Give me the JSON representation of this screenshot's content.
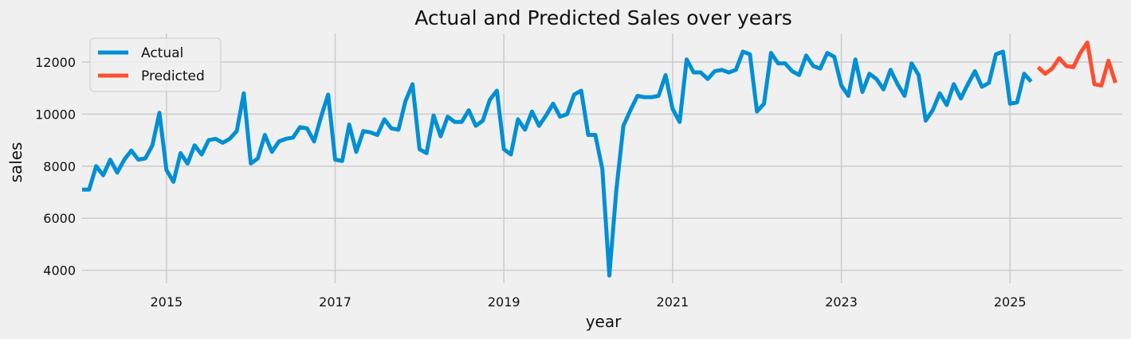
{
  "chart_data": {
    "type": "line",
    "title": "Actual and Predicted Sales over years",
    "xlabel": "year",
    "ylabel": "sales",
    "xlim": [
      2014.0,
      2026.33
    ],
    "ylim": [
      3500,
      13100
    ],
    "x_ticks": [
      2015,
      2017,
      2019,
      2021,
      2023,
      2025
    ],
    "y_ticks": [
      4000,
      6000,
      8000,
      10000,
      12000
    ],
    "grid": true,
    "legend_position": "top-left",
    "x_start_year": 2014,
    "points_per_year": 12,
    "series": [
      {
        "name": "Actual",
        "color": "#008fd5",
        "start_index": 0,
        "values": [
          7100,
          7100,
          8000,
          7650,
          8250,
          7750,
          8250,
          8600,
          8250,
          8300,
          8800,
          10050,
          7850,
          7400,
          8500,
          8100,
          8800,
          8450,
          9000,
          9050,
          8900,
          9050,
          9350,
          10800,
          8100,
          8300,
          9200,
          8550,
          8950,
          9050,
          9100,
          9500,
          9450,
          8950,
          9900,
          10750,
          8250,
          8200,
          9600,
          8550,
          9350,
          9300,
          9200,
          9800,
          9450,
          9400,
          10500,
          11150,
          8650,
          8500,
          9950,
          9150,
          9900,
          9700,
          9700,
          10150,
          9550,
          9750,
          10550,
          10900,
          8650,
          8450,
          9800,
          9400,
          10100,
          9550,
          9950,
          10400,
          9900,
          10000,
          10750,
          10900,
          9200,
          9200,
          7900,
          3800,
          7100,
          9550,
          10150,
          10700,
          10650,
          10650,
          10700,
          11500,
          10200,
          9700,
          12100,
          11600,
          11600,
          11350,
          11650,
          11700,
          11600,
          11700,
          12400,
          12300,
          10100,
          10400,
          12350,
          11950,
          11950,
          11650,
          11500,
          12250,
          11850,
          11750,
          12350,
          12200,
          11100,
          10700,
          12100,
          10850,
          11550,
          11350,
          10950,
          11700,
          11150,
          10700,
          11950,
          11500,
          9750,
          10150,
          10800,
          10350,
          11150,
          10600,
          11150,
          11650,
          11050,
          11200,
          12300,
          12400,
          10400,
          10450,
          11550,
          11250
        ]
      },
      {
        "name": "Predicted",
        "color": "#fc4f30",
        "start_index": 136,
        "values": [
          11800,
          11550,
          11750,
          12150,
          11850,
          11800,
          12350,
          12750,
          11150,
          11100,
          12050,
          11200
        ]
      }
    ]
  }
}
